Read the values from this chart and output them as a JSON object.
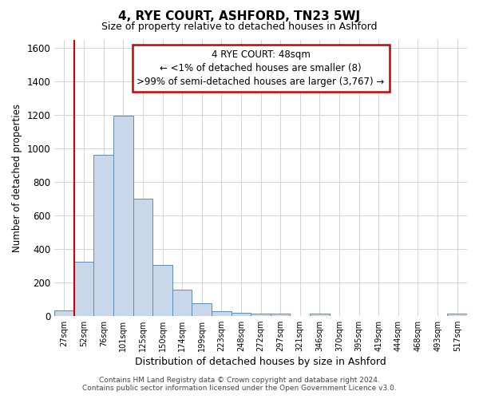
{
  "title": "4, RYE COURT, ASHFORD, TN23 5WJ",
  "subtitle": "Size of property relative to detached houses in Ashford",
  "xlabel": "Distribution of detached houses by size in Ashford",
  "ylabel": "Number of detached properties",
  "categories": [
    "27sqm",
    "52sqm",
    "76sqm",
    "101sqm",
    "125sqm",
    "150sqm",
    "174sqm",
    "199sqm",
    "223sqm",
    "248sqm",
    "272sqm",
    "297sqm",
    "321sqm",
    "346sqm",
    "370sqm",
    "395sqm",
    "419sqm",
    "444sqm",
    "468sqm",
    "493sqm",
    "517sqm"
  ],
  "values": [
    30,
    325,
    965,
    1195,
    700,
    305,
    155,
    75,
    25,
    20,
    15,
    15,
    0,
    12,
    0,
    0,
    0,
    0,
    0,
    0,
    12
  ],
  "bar_color": "#c8d8ea",
  "bar_edge_color": "#5b8db8",
  "ylim": [
    0,
    1650
  ],
  "yticks": [
    0,
    200,
    400,
    600,
    800,
    1000,
    1200,
    1400,
    1600
  ],
  "annotation_line1": "4 RYE COURT: 48sqm",
  "annotation_line2": "← <1% of detached houses are smaller (8)",
  "annotation_line3": ">99% of semi-detached houses are larger (3,767) →",
  "annotation_box_color": "#cc0000",
  "vline_x": 1.0,
  "footer_line1": "Contains HM Land Registry data © Crown copyright and database right 2024.",
  "footer_line2": "Contains public sector information licensed under the Open Government Licence v3.0.",
  "bg_color": "#ffffff",
  "grid_color": "#cccccc"
}
